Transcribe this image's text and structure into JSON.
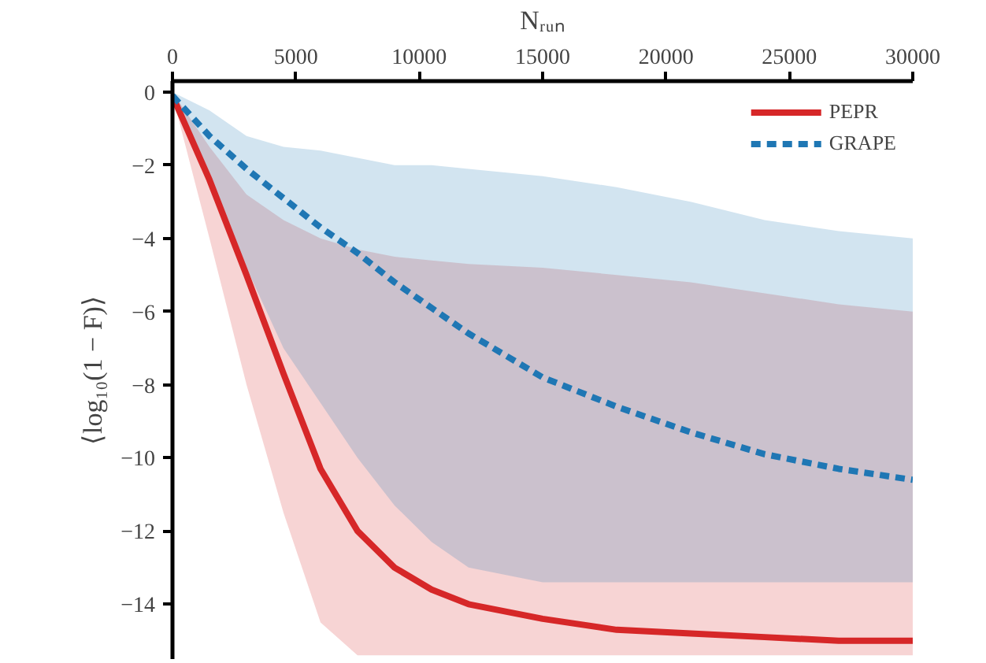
{
  "chart_data": {
    "type": "line",
    "xlabel": "Nᵣᵤₙ",
    "ylabel": "⟨log₁₀(1 − F)⟩",
    "xlim": [
      0,
      30000
    ],
    "ylim": [
      -15.5,
      0.3
    ],
    "xticks": [
      0,
      5000,
      10000,
      15000,
      20000,
      25000,
      30000
    ],
    "yticks": [
      {
        "value": 0,
        "label": "0"
      },
      {
        "value": -2,
        "label": "−2"
      },
      {
        "value": -4,
        "label": "−4"
      },
      {
        "value": -6,
        "label": "−6"
      },
      {
        "value": -8,
        "label": "−8"
      },
      {
        "value": -10,
        "label": "−10"
      },
      {
        "value": -12,
        "label": "−12"
      },
      {
        "value": -14,
        "label": "−14"
      }
    ],
    "x": [
      0,
      1500,
      3000,
      4500,
      6000,
      7500,
      9000,
      10500,
      12000,
      15000,
      18000,
      21000,
      24000,
      27000,
      30000
    ],
    "grid": false,
    "legend": "top right",
    "marker": "none",
    "series": [
      {
        "name": "PEPR",
        "color": "#d62728",
        "line_style": "solid",
        "values": [
          -0.1,
          -2.4,
          -5.0,
          -7.7,
          -10.3,
          -12.0,
          -13.0,
          -13.6,
          -14.0,
          -14.4,
          -14.7,
          -14.8,
          -14.9,
          -15.0,
          -15.0
        ],
        "lower": [
          -0.1,
          -4.0,
          -8.0,
          -11.5,
          -14.5,
          -15.4,
          -15.4,
          -15.4,
          -15.4,
          -15.4,
          -15.4,
          -15.4,
          -15.4,
          -15.4,
          -15.4
        ],
        "upper": [
          0,
          -1.5,
          -2.8,
          -3.5,
          -4.0,
          -4.3,
          -4.5,
          -4.6,
          -4.7,
          -4.8,
          -5.0,
          -5.2,
          -5.5,
          -5.8,
          -6.0
        ]
      },
      {
        "name": "GRAPE",
        "color": "#1f77b4",
        "line_style": "dashed",
        "values": [
          -0.1,
          -1.2,
          -2.1,
          -2.9,
          -3.7,
          -4.4,
          -5.2,
          -5.9,
          -6.6,
          -7.8,
          -8.6,
          -9.3,
          -9.9,
          -10.3,
          -10.6
        ],
        "lower": [
          -0.1,
          -2.5,
          -4.8,
          -7.0,
          -8.5,
          -10.0,
          -11.3,
          -12.3,
          -13.0,
          -13.4,
          -13.4,
          -13.4,
          -13.4,
          -13.4,
          -13.4
        ],
        "upper": [
          0,
          -0.5,
          -1.2,
          -1.5,
          -1.6,
          -1.8,
          -2.0,
          -2.0,
          -2.1,
          -2.3,
          -2.6,
          -3.0,
          -3.5,
          -3.8,
          -4.0
        ]
      }
    ]
  }
}
